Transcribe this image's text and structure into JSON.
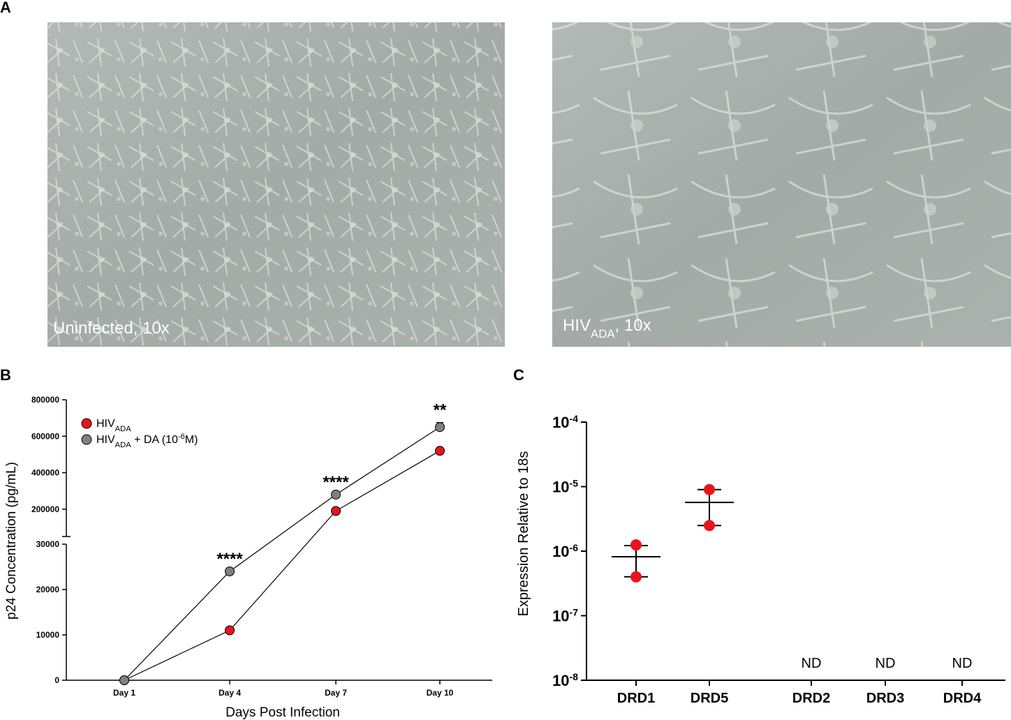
{
  "panel_labels": [
    "A",
    "B",
    "C"
  ],
  "images": [
    {
      "caption": [
        {
          "text": "Uninfected, 10x"
        }
      ]
    },
    {
      "caption": [
        {
          "text": "HIV"
        },
        {
          "text": "ADA",
          "sub": true
        },
        {
          "text": ", 10x"
        }
      ]
    }
  ],
  "chart_data": [
    {
      "type": "line",
      "x_label": "Days Post Infection",
      "y_label": "p24 Concentration (pg/mL)",
      "categories": [
        "Day 1",
        "Day 4",
        "Day 7",
        "Day 10"
      ],
      "y_segments": [
        {
          "ylim": [
            0,
            30000
          ],
          "yticks": [
            0,
            10000,
            20000,
            30000
          ]
        },
        {
          "ylim": [
            50000,
            800000
          ],
          "yticks": [
            200000,
            400000,
            600000,
            800000
          ]
        }
      ],
      "series": [
        {
          "name": [
            {
              "text": "HIV"
            },
            {
              "text": "ADA",
              "sub": true
            }
          ],
          "color": "#e8141b",
          "values": [
            0,
            11000,
            190000,
            520000
          ]
        },
        {
          "name": [
            {
              "text": "HIV"
            },
            {
              "text": "ADA",
              "sub": true
            },
            {
              "text": " + DA (10"
            },
            {
              "text": "-6",
              "sup": true
            },
            {
              "text": "M)"
            }
          ],
          "color": "#808080",
          "values": [
            0,
            24000,
            280000,
            650000
          ],
          "errors": [
            null,
            null,
            null,
            25000
          ]
        }
      ],
      "annotations": [
        null,
        "****",
        "****",
        "**"
      ],
      "legend": "upper left"
    },
    {
      "type": "scatter",
      "y_label": "Expression Relative to 18s",
      "log_y": true,
      "ylim": [
        1e-08,
        0.0001
      ],
      "yticks": [
        {
          "value": 1e-08,
          "label": "10",
          "exp": "-8"
        },
        {
          "value": 1e-07,
          "label": "10",
          "exp": "-7"
        },
        {
          "value": 1e-06,
          "label": "10",
          "exp": "-6"
        },
        {
          "value": 1e-05,
          "label": "10",
          "exp": "-5"
        },
        {
          "value": 0.0001,
          "label": "10",
          "exp": "-4"
        }
      ],
      "categories": [
        "DRD1",
        "DRD5",
        "DRD2",
        "DRD3",
        "DRD4"
      ],
      "color": "#e8141b",
      "values": [
        [
          1.25e-06,
          4e-07
        ],
        [
          9e-06,
          2.5e-06
        ],
        null,
        null,
        null
      ],
      "mean": [
        8.2e-07,
        5.7e-06,
        null,
        null,
        null
      ],
      "error_low": [
        4e-07,
        2.5e-06,
        null,
        null,
        null
      ],
      "error_high": [
        1.22e-06,
        9e-06,
        null,
        null,
        null
      ],
      "value_labels": [
        null,
        null,
        "ND",
        "ND",
        "ND"
      ]
    }
  ]
}
